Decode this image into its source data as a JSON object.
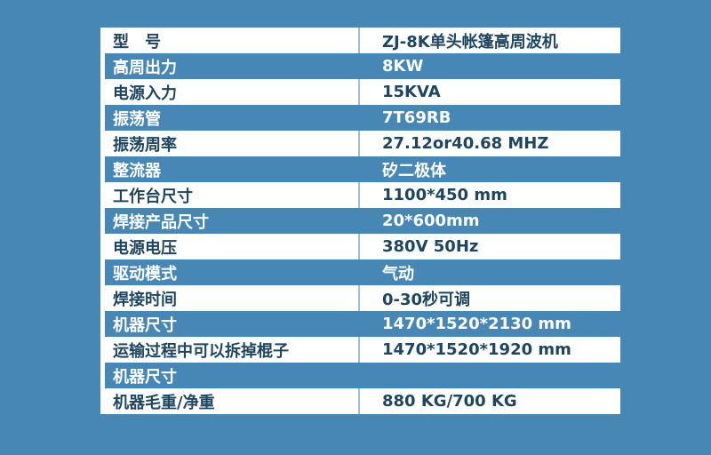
{
  "page": {
    "background_color": "#4787b6",
    "row_white_bg": "#ffffff",
    "row_white_text_color": "#1d4660",
    "row_blue_text_color": "#ffffff",
    "divider_color": "#9fc1d8",
    "left_stripe_color": "#ffffff"
  },
  "table": {
    "rows": [
      {
        "label": "型　号",
        "value": "ZJ-8K单头帐篷高周波机",
        "variant": "white"
      },
      {
        "label": "高周出力",
        "value": "8KW",
        "variant": "blue"
      },
      {
        "label": "电源入力",
        "value": "15KVA",
        "variant": "white"
      },
      {
        "label": "振荡管",
        "value": "7T69RB",
        "variant": "blue"
      },
      {
        "label": "振荡周率",
        "value": "27.12or40.68 MHZ",
        "variant": "white"
      },
      {
        "label": "整流器",
        "value": "矽二极体",
        "variant": "blue"
      },
      {
        "label": "工作台尺寸",
        "value": "1100*450 mm",
        "variant": "white"
      },
      {
        "label": "焊接产品尺寸",
        "value": "20*600mm",
        "variant": "blue"
      },
      {
        "label": "电源电压",
        "value": "380V 50Hz",
        "variant": "white"
      },
      {
        "label": "驱动模式",
        "value": "气动",
        "variant": "blue"
      },
      {
        "label": "焊接时间",
        "value": "0-30秒可调",
        "variant": "white"
      },
      {
        "label": "机器尺寸",
        "value": "1470*1520*2130 mm",
        "variant": "blue"
      },
      {
        "label": "运输过程中可以拆掉棍子",
        "value": "1470*1520*1920 mm",
        "variant": "white"
      },
      {
        "label": "机器尺寸",
        "value": "",
        "variant": "blue"
      },
      {
        "label": "机器毛重/净重",
        "value": "880 KG/700 KG",
        "variant": "white"
      }
    ]
  }
}
